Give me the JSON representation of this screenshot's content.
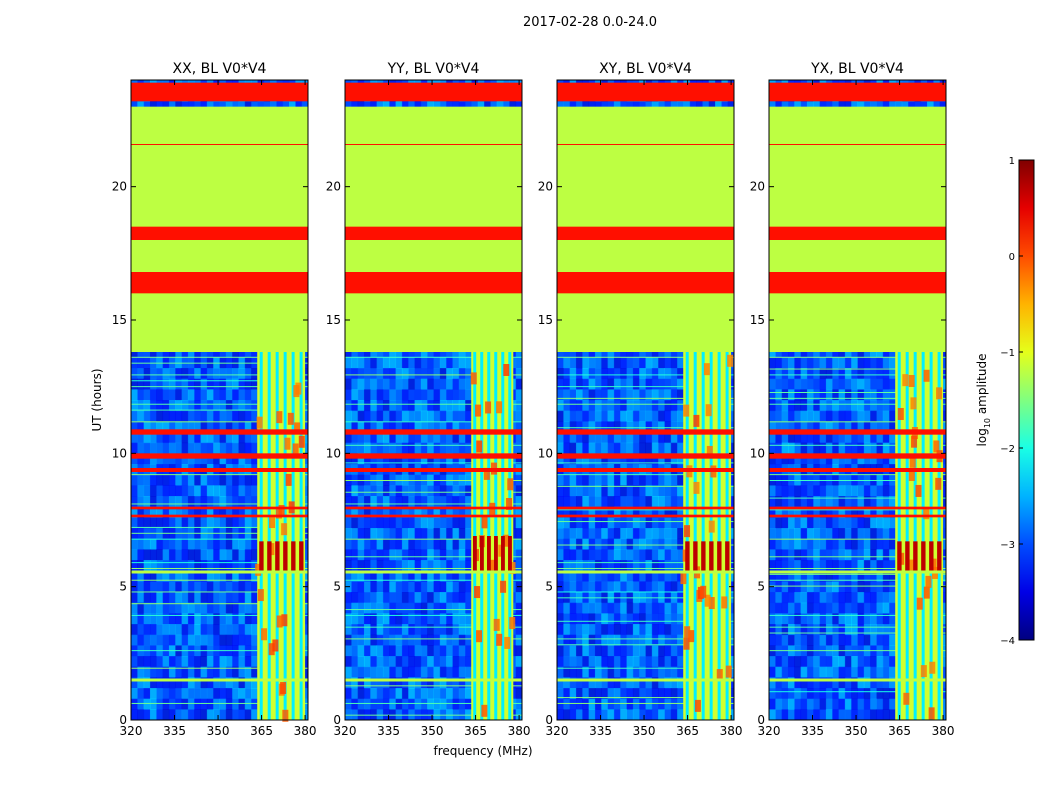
{
  "figure": {
    "suptitle": "2017-02-28 0.0-24.0",
    "xlabel": "frequency (MHz)",
    "ylabel": "UT (hours)"
  },
  "colorbar": {
    "label_prefix": "log",
    "label_sub": "10",
    "label_suffix": " amplitude",
    "min": -4,
    "max": 1,
    "ticks": [
      "1",
      "0",
      "−1",
      "−2",
      "−3",
      "−4"
    ],
    "tick_values": [
      1,
      0,
      -1,
      -2,
      -3,
      -4
    ],
    "colormap": "jet"
  },
  "chart_data": [
    {
      "type": "heatmap",
      "title": "XX, BL V0*V4",
      "xlim": [
        320,
        381
      ],
      "ylim": [
        0,
        24
      ],
      "xticks": [
        "320",
        "335",
        "350",
        "365",
        "380"
      ],
      "yticks": [
        "0",
        "5",
        "10",
        "15",
        "20"
      ],
      "rfi_band_mhz": [
        363.5,
        380
      ],
      "rfi_hot_hours": [
        5.6,
        6.7
      ]
    },
    {
      "type": "heatmap",
      "title": "YY, BL V0*V4",
      "xlim": [
        320,
        381
      ],
      "ylim": [
        0,
        24
      ],
      "xticks": [
        "320",
        "335",
        "350",
        "365",
        "380"
      ],
      "yticks": [
        "0",
        "5",
        "10",
        "15",
        "20"
      ],
      "rfi_band_mhz": [
        363.5,
        378
      ],
      "rfi_hot_hours": [
        5.5,
        6.9
      ]
    },
    {
      "type": "heatmap",
      "title": "XY, BL V0*V4",
      "xlim": [
        320,
        381
      ],
      "ylim": [
        0,
        24
      ],
      "xticks": [
        "320",
        "335",
        "350",
        "365",
        "380"
      ],
      "yticks": [
        "0",
        "5",
        "10",
        "15",
        "20"
      ],
      "rfi_band_mhz": [
        363.5,
        380
      ],
      "rfi_hot_hours": [
        5.6,
        6.7
      ]
    },
    {
      "type": "heatmap",
      "title": "YX, BL V0*V4",
      "xlim": [
        320,
        381
      ],
      "ylim": [
        0,
        24
      ],
      "xticks": [
        "320",
        "335",
        "350",
        "365",
        "380"
      ],
      "yticks": [
        "0",
        "5",
        "10",
        "15",
        "20"
      ],
      "rfi_band_mhz": [
        363.5,
        380
      ],
      "rfi_hot_hours": [
        5.6,
        6.7
      ]
    }
  ],
  "common_bands": {
    "saturated_orange_hours": [
      [
        23.2,
        23.9
      ],
      [
        18.0,
        18.5
      ],
      [
        16.0,
        16.8
      ],
      [
        10.7,
        10.9
      ],
      [
        9.8,
        10.0
      ],
      [
        9.3,
        9.45
      ],
      [
        7.9,
        8.0
      ],
      [
        7.6,
        7.7
      ]
    ],
    "flat_green_hours": [
      [
        13.8,
        23.0
      ]
    ],
    "light_green_line_hours": [
      5.55,
      1.5
    ]
  }
}
